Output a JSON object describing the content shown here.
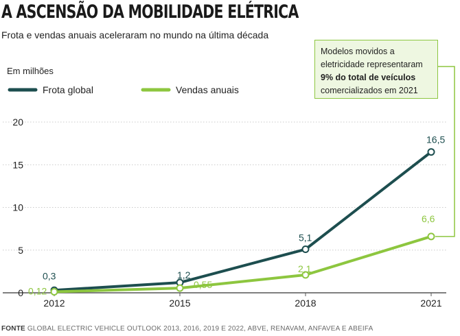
{
  "title": "A ASCENSÃO DA MOBILIDADE ELÉTRICA",
  "subtitle": "Frota e vendas anuais aceleraram no mundo na última década",
  "callout": {
    "line1": "Modelos movidos a",
    "line2": "eletricidade representaram",
    "bold": "9% do total de veículos",
    "line4": "comercializados em 2021"
  },
  "source": {
    "label": "FONTE",
    "text": "GLOBAL ELECTRIC VEHICLE OUTLOOK 2013, 2016, 2019 E 2022, ABVE, RENAVAM, ANFAVEA E ABEIFA"
  },
  "colors": {
    "fleet": "#1d4e4f",
    "sales": "#8dc63f",
    "grid": "#c9c9c9",
    "axis": "#555555"
  },
  "chart_data": {
    "type": "line",
    "ylabel": "Em milhões",
    "x": [
      2012,
      2015,
      2018,
      2021
    ],
    "x_tick_labels": [
      "2012",
      "2015",
      "2018",
      "2021"
    ],
    "ylim": [
      0,
      20
    ],
    "y_ticks": [
      0,
      5,
      10,
      15,
      20
    ],
    "grid": "horizontal-dashed",
    "legend_position": "top-left",
    "series": [
      {
        "name": "Frota global",
        "values": [
          0.3,
          1.2,
          5.1,
          16.5
        ],
        "labels": [
          "0,3",
          "1,2",
          "5,1",
          "16,5"
        ]
      },
      {
        "name": "Vendas anuais",
        "values": [
          0.12,
          0.55,
          2.1,
          6.6
        ],
        "labels": [
          "0,12",
          "0,55",
          "2,1",
          "6,6"
        ]
      }
    ]
  }
}
